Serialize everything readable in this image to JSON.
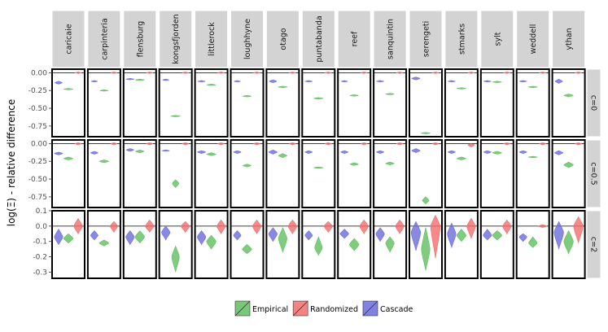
{
  "chart_data": {
    "type": "violin",
    "ylabel": "log(Ξ) - relative difference",
    "facet_columns": [
      "caricaie",
      "carpinteria",
      "flensburg",
      "kongsfjorden",
      "littlerock",
      "loughhyne",
      "otago",
      "puntabanda",
      "reef",
      "sanquintin",
      "serengeti",
      "stmarks",
      "sylt",
      "weddell",
      "ythan"
    ],
    "facet_rows": [
      {
        "label": "c=0",
        "ylim": [
          -0.9,
          0.05
        ],
        "ticks": [
          0.0,
          -0.25,
          -0.5,
          -0.75
        ],
        "tick_labels": [
          "0.00",
          "-0.25",
          "-0.50",
          "-0.75"
        ]
      },
      {
        "label": "c=0.5",
        "ylim": [
          -0.9,
          0.05
        ],
        "ticks": [
          0.0,
          -0.25,
          -0.5,
          -0.75
        ],
        "tick_labels": [
          "0.00",
          "-0.25",
          "-0.50",
          "-0.75"
        ]
      },
      {
        "label": "c=2",
        "ylim": [
          -0.34,
          0.1
        ],
        "ticks": [
          0.1,
          0.0,
          -0.1,
          -0.2,
          -0.3
        ],
        "tick_labels": [
          "0.1",
          "0.0",
          "-0.1",
          "-0.2",
          "-0.3"
        ]
      }
    ],
    "series_order": [
      "Cascade",
      "Empirical",
      "Randomized"
    ],
    "legend": [
      {
        "name": "Empirical",
        "color": "#5fbf5f"
      },
      {
        "name": "Randomized",
        "color": "#f26d6d"
      },
      {
        "name": "Cascade",
        "color": "#6b6bdd"
      }
    ],
    "violins": {
      "c=0": [
        {
          "Cascade": [
            -0.14,
            -0.12,
            -0.16,
            0.8
          ],
          "Empirical": [
            -0.23,
            -0.22,
            -0.24,
            1.0
          ],
          "Randomized": [
            0.0,
            0.005,
            -0.005,
            0.7
          ]
        },
        {
          "Cascade": [
            -0.12,
            -0.11,
            -0.13,
            0.7
          ],
          "Empirical": [
            -0.25,
            -0.24,
            -0.26,
            0.9
          ],
          "Randomized": [
            0.0,
            0.005,
            -0.005,
            0.7
          ]
        },
        {
          "Cascade": [
            -0.09,
            -0.08,
            -0.1,
            0.9
          ],
          "Empirical": [
            -0.1,
            -0.09,
            -0.11,
            1.0
          ],
          "Randomized": [
            0.0,
            0.005,
            -0.005,
            0.7
          ]
        },
        {
          "Cascade": [
            -0.1,
            -0.09,
            -0.11,
            0.7
          ],
          "Empirical": [
            -0.61,
            -0.6,
            -0.62,
            1.0
          ],
          "Randomized": [
            0.0,
            0.005,
            -0.005,
            0.7
          ]
        },
        {
          "Cascade": [
            -0.12,
            -0.11,
            -0.13,
            0.8
          ],
          "Empirical": [
            -0.17,
            -0.16,
            -0.18,
            1.0
          ],
          "Randomized": [
            0.0,
            0.005,
            -0.005,
            0.7
          ]
        },
        {
          "Cascade": [
            -0.12,
            -0.11,
            -0.13,
            0.7
          ],
          "Empirical": [
            -0.33,
            -0.32,
            -0.34,
            0.9
          ],
          "Randomized": [
            0.0,
            0.005,
            -0.005,
            0.7
          ]
        },
        {
          "Cascade": [
            -0.12,
            -0.1,
            -0.14,
            0.8
          ],
          "Empirical": [
            -0.2,
            -0.19,
            -0.21,
            1.0
          ],
          "Randomized": [
            0.0,
            0.005,
            -0.005,
            0.7
          ]
        },
        {
          "Cascade": [
            -0.12,
            -0.11,
            -0.13,
            0.8
          ],
          "Empirical": [
            -0.36,
            -0.35,
            -0.37,
            1.0
          ],
          "Randomized": [
            0.0,
            0.005,
            -0.005,
            0.7
          ]
        },
        {
          "Cascade": [
            -0.12,
            -0.11,
            -0.13,
            0.7
          ],
          "Empirical": [
            -0.32,
            -0.31,
            -0.33,
            0.9
          ],
          "Randomized": [
            0.0,
            0.005,
            -0.005,
            0.7
          ]
        },
        {
          "Cascade": [
            -0.12,
            -0.11,
            -0.13,
            0.8
          ],
          "Empirical": [
            -0.3,
            -0.29,
            -0.31,
            0.9
          ],
          "Randomized": [
            0.0,
            0.005,
            -0.005,
            0.7
          ]
        },
        {
          "Cascade": [
            -0.08,
            -0.06,
            -0.1,
            0.9
          ],
          "Empirical": [
            -0.85,
            -0.84,
            -0.86,
            1.0
          ],
          "Randomized": [
            0.0,
            0.005,
            -0.005,
            0.7
          ]
        },
        {
          "Cascade": [
            -0.12,
            -0.11,
            -0.13,
            0.8
          ],
          "Empirical": [
            -0.22,
            -0.21,
            -0.23,
            1.0
          ],
          "Randomized": [
            0.0,
            0.005,
            -0.005,
            0.7
          ]
        },
        {
          "Cascade": [
            -0.12,
            -0.11,
            -0.13,
            0.8
          ],
          "Empirical": [
            -0.13,
            -0.12,
            -0.14,
            1.0
          ],
          "Randomized": [
            0.0,
            0.005,
            -0.005,
            0.7
          ]
        },
        {
          "Cascade": [
            -0.12,
            -0.11,
            -0.13,
            0.8
          ],
          "Empirical": [
            -0.2,
            -0.19,
            -0.21,
            1.0
          ],
          "Randomized": [
            0.0,
            0.005,
            -0.005,
            0.7
          ]
        },
        {
          "Cascade": [
            -0.12,
            -0.09,
            -0.15,
            0.8
          ],
          "Empirical": [
            -0.32,
            -0.3,
            -0.34,
            1.0
          ],
          "Randomized": [
            0.0,
            0.005,
            -0.005,
            0.7
          ]
        }
      ],
      "c=0.5": [
        {
          "Cascade": [
            -0.14,
            -0.12,
            -0.16,
            0.9
          ],
          "Empirical": [
            -0.21,
            -0.19,
            -0.23,
            1.0
          ],
          "Randomized": [
            0.0,
            0.01,
            -0.02,
            0.7
          ]
        },
        {
          "Cascade": [
            -0.13,
            -0.11,
            -0.15,
            0.8
          ],
          "Empirical": [
            -0.25,
            -0.23,
            -0.27,
            1.0
          ],
          "Randomized": [
            0.0,
            0.01,
            -0.02,
            0.7
          ]
        },
        {
          "Cascade": [
            -0.09,
            -0.07,
            -0.11,
            0.8
          ],
          "Empirical": [
            -0.11,
            -0.09,
            -0.13,
            0.9
          ],
          "Randomized": [
            0.0,
            0.01,
            -0.02,
            0.7
          ]
        },
        {
          "Cascade": [
            -0.1,
            -0.09,
            -0.11,
            0.8
          ],
          "Empirical": [
            -0.56,
            -0.51,
            -0.62,
            0.7
          ],
          "Randomized": [
            0.0,
            0.01,
            -0.02,
            0.7
          ]
        },
        {
          "Cascade": [
            -0.12,
            -0.1,
            -0.14,
            0.9
          ],
          "Empirical": [
            -0.15,
            -0.13,
            -0.17,
            1.0
          ],
          "Randomized": [
            0.0,
            0.01,
            -0.02,
            0.7
          ]
        },
        {
          "Cascade": [
            -0.12,
            -0.1,
            -0.14,
            0.8
          ],
          "Empirical": [
            -0.31,
            -0.29,
            -0.33,
            0.9
          ],
          "Randomized": [
            0.0,
            0.01,
            -0.02,
            0.7
          ]
        },
        {
          "Cascade": [
            -0.12,
            -0.09,
            -0.15,
            0.9
          ],
          "Empirical": [
            -0.17,
            -0.14,
            -0.2,
            0.9
          ],
          "Randomized": [
            0.0,
            0.01,
            -0.02,
            0.7
          ]
        },
        {
          "Cascade": [
            -0.12,
            -0.1,
            -0.14,
            0.8
          ],
          "Empirical": [
            -0.34,
            -0.33,
            -0.35,
            1.0
          ],
          "Randomized": [
            0.0,
            0.01,
            -0.02,
            0.7
          ]
        },
        {
          "Cascade": [
            -0.12,
            -0.1,
            -0.14,
            0.8
          ],
          "Empirical": [
            -0.29,
            -0.27,
            -0.31,
            0.9
          ],
          "Randomized": [
            0.0,
            0.01,
            -0.02,
            0.7
          ]
        },
        {
          "Cascade": [
            -0.12,
            -0.1,
            -0.14,
            0.8
          ],
          "Empirical": [
            -0.28,
            -0.26,
            -0.3,
            0.9
          ],
          "Randomized": [
            0.0,
            0.01,
            -0.02,
            0.7
          ]
        },
        {
          "Cascade": [
            -0.1,
            -0.07,
            -0.13,
            0.9
          ],
          "Empirical": [
            -0.8,
            -0.75,
            -0.85,
            0.7
          ],
          "Randomized": [
            0.0,
            0.01,
            -0.02,
            0.7
          ]
        },
        {
          "Cascade": [
            -0.12,
            -0.1,
            -0.14,
            0.8
          ],
          "Empirical": [
            -0.21,
            -0.19,
            -0.23,
            1.0
          ],
          "Randomized": [
            -0.02,
            0.0,
            -0.05,
            0.7
          ]
        },
        {
          "Cascade": [
            -0.12,
            -0.1,
            -0.14,
            0.8
          ],
          "Empirical": [
            -0.13,
            -0.11,
            -0.15,
            1.0
          ],
          "Randomized": [
            0.0,
            0.01,
            -0.02,
            0.7
          ]
        },
        {
          "Cascade": [
            -0.12,
            -0.1,
            -0.14,
            0.8
          ],
          "Empirical": [
            -0.19,
            -0.18,
            -0.2,
            1.0
          ],
          "Randomized": [
            0.0,
            0.01,
            -0.02,
            0.7
          ]
        },
        {
          "Cascade": [
            -0.13,
            -0.1,
            -0.16,
            0.9
          ],
          "Empirical": [
            -0.3,
            -0.26,
            -0.34,
            1.0
          ],
          "Randomized": [
            0.0,
            0.01,
            -0.02,
            0.7
          ]
        }
      ],
      "c=2": [
        {
          "Cascade": [
            -0.07,
            -0.02,
            -0.12,
            0.9
          ],
          "Empirical": [
            -0.08,
            -0.05,
            -0.11,
            1.0
          ],
          "Randomized": [
            0.0,
            0.05,
            -0.05,
            0.9
          ]
        },
        {
          "Cascade": [
            -0.06,
            -0.03,
            -0.09,
            0.8
          ],
          "Empirical": [
            -0.11,
            -0.09,
            -0.13,
            1.0
          ],
          "Randomized": [
            0.0,
            0.03,
            -0.04,
            0.8
          ]
        },
        {
          "Cascade": [
            -0.07,
            -0.03,
            -0.12,
            0.9
          ],
          "Empirical": [
            -0.07,
            -0.03,
            -0.11,
            1.0
          ],
          "Randomized": [
            0.0,
            0.04,
            -0.04,
            0.9
          ]
        },
        {
          "Cascade": [
            -0.04,
            0.0,
            -0.09,
            0.9
          ],
          "Empirical": [
            -0.2,
            -0.13,
            -0.3,
            0.8
          ],
          "Randomized": [
            0.0,
            0.03,
            -0.04,
            0.9
          ]
        },
        {
          "Cascade": [
            -0.07,
            -0.03,
            -0.12,
            0.9
          ],
          "Empirical": [
            -0.1,
            -0.06,
            -0.15,
            1.0
          ],
          "Randomized": [
            0.0,
            0.04,
            -0.05,
            0.9
          ]
        },
        {
          "Cascade": [
            -0.06,
            -0.03,
            -0.09,
            0.8
          ],
          "Empirical": [
            -0.15,
            -0.12,
            -0.18,
            1.0
          ],
          "Randomized": [
            0.0,
            0.04,
            -0.05,
            0.9
          ]
        },
        {
          "Cascade": [
            -0.05,
            -0.01,
            -0.1,
            0.9
          ],
          "Empirical": [
            -0.08,
            -0.01,
            -0.17,
            0.9
          ],
          "Randomized": [
            0.0,
            0.04,
            -0.05,
            0.9
          ]
        },
        {
          "Cascade": [
            -0.06,
            -0.03,
            -0.09,
            0.8
          ],
          "Empirical": [
            -0.14,
            -0.07,
            -0.19,
            0.8
          ],
          "Randomized": [
            0.0,
            0.03,
            -0.04,
            0.9
          ]
        },
        {
          "Cascade": [
            -0.05,
            -0.02,
            -0.08,
            0.9
          ],
          "Empirical": [
            -0.12,
            -0.08,
            -0.16,
            1.0
          ],
          "Randomized": [
            0.0,
            0.04,
            -0.05,
            0.9
          ]
        },
        {
          "Cascade": [
            -0.05,
            -0.01,
            -0.1,
            0.9
          ],
          "Empirical": [
            -0.11,
            -0.07,
            -0.17,
            0.9
          ],
          "Randomized": [
            0.0,
            0.04,
            -0.05,
            0.9
          ]
        },
        {
          "Cascade": [
            -0.04,
            0.03,
            -0.16,
            1.0
          ],
          "Empirical": [
            -0.15,
            -0.01,
            -0.29,
            0.9
          ],
          "Randomized": [
            0.0,
            0.07,
            -0.21,
            1.0
          ]
        },
        {
          "Cascade": [
            -0.05,
            0.02,
            -0.14,
            0.9
          ],
          "Empirical": [
            -0.06,
            -0.02,
            -0.1,
            1.0
          ],
          "Randomized": [
            0.0,
            0.05,
            -0.08,
            0.9
          ]
        },
        {
          "Cascade": [
            -0.06,
            -0.02,
            -0.09,
            0.9
          ],
          "Empirical": [
            -0.06,
            -0.03,
            -0.09,
            1.0
          ],
          "Randomized": [
            0.0,
            0.04,
            -0.05,
            0.9
          ]
        },
        {
          "Cascade": [
            -0.07,
            -0.05,
            -0.1,
            0.8
          ],
          "Empirical": [
            -0.11,
            -0.07,
            -0.14,
            0.9
          ],
          "Randomized": [
            0.0,
            0.01,
            -0.01,
            0.9
          ]
        },
        {
          "Cascade": [
            -0.04,
            0.03,
            -0.15,
            1.0
          ],
          "Empirical": [
            -0.1,
            -0.03,
            -0.18,
            1.0
          ],
          "Randomized": [
            0.0,
            0.06,
            -0.11,
            1.0
          ]
        }
      ]
    }
  }
}
